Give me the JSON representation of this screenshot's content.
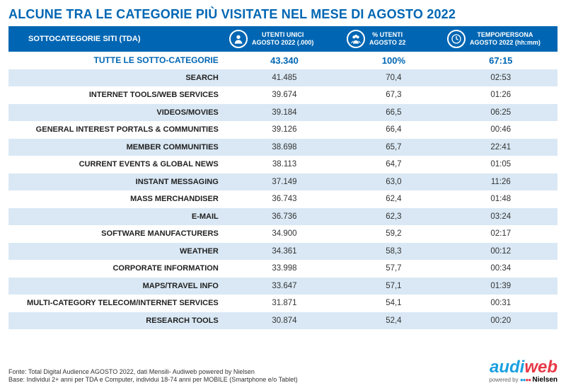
{
  "title": "ALCUNE TRA LE CATEGORIE PIÙ VISITATE NEL MESE DI AGOSTO 2022",
  "colors": {
    "brand_blue": "#0066b3",
    "row_alt": "#d9e8f4",
    "logo_blue": "#1aa0e0",
    "logo_red": "#e63946"
  },
  "header": {
    "category_label": "SOTTOCATEGORIE SITI  (TDA)",
    "users": {
      "line1": "UTENTI UNICI",
      "line2": "AGOSTO 2022 (.000)"
    },
    "percent": {
      "line1": "% UTENTI",
      "line2": "AGOSTO 22"
    },
    "time": {
      "line1": "TEMPO/PERSONA",
      "line2": "AGOSTO 2022 (hh:mm)"
    },
    "icons": {
      "users": "person-icon",
      "percent": "group-icon",
      "time": "clock-icon"
    }
  },
  "total_row": {
    "category": "TUTTE LE SOTTO-CATEGORIE",
    "users": "43.340",
    "percent": "100%",
    "time": "67:15"
  },
  "rows": [
    {
      "category": "SEARCH",
      "users": "41.485",
      "percent": "70,4",
      "time": "02:53"
    },
    {
      "category": "INTERNET TOOLS/WEB SERVICES",
      "users": "39.674",
      "percent": "67,3",
      "time": "01:26"
    },
    {
      "category": "VIDEOS/MOVIES",
      "users": "39.184",
      "percent": "66,5",
      "time": "06:25"
    },
    {
      "category": "GENERAL INTEREST PORTALS & COMMUNITIES",
      "users": "39.126",
      "percent": "66,4",
      "time": "00:46"
    },
    {
      "category": "MEMBER COMMUNITIES",
      "users": "38.698",
      "percent": "65,7",
      "time": "22:41"
    },
    {
      "category": "CURRENT EVENTS & GLOBAL NEWS",
      "users": "38.113",
      "percent": "64,7",
      "time": "01:05"
    },
    {
      "category": "INSTANT MESSAGING",
      "users": "37.149",
      "percent": "63,0",
      "time": "11:26"
    },
    {
      "category": "MASS MERCHANDISER",
      "users": "36.743",
      "percent": "62,4",
      "time": "01:48"
    },
    {
      "category": "E-MAIL",
      "users": "36.736",
      "percent": "62,3",
      "time": "03:24"
    },
    {
      "category": "SOFTWARE MANUFACTURERS",
      "users": "34.900",
      "percent": "59,2",
      "time": "02:17"
    },
    {
      "category": "WEATHER",
      "users": "34.361",
      "percent": "58,3",
      "time": "00:12"
    },
    {
      "category": "CORPORATE INFORMATION",
      "users": "33.998",
      "percent": "57,7",
      "time": "00:34"
    },
    {
      "category": "MAPS/TRAVEL INFO",
      "users": "33.647",
      "percent": "57,1",
      "time": "01:39"
    },
    {
      "category": "MULTI-CATEGORY TELECOM/INTERNET SERVICES",
      "users": "31.871",
      "percent": "54,1",
      "time": "00:31"
    },
    {
      "category": "RESEARCH TOOLS",
      "users": "30.874",
      "percent": "52,4",
      "time": "00:20"
    }
  ],
  "footer": {
    "source_line1": "Fonte: Total Digital Audience AGOSTO 2022, dati Mensili- Audiweb powered by Nielsen",
    "source_line2": "Base:  Individui 2+ anni per TDA e Computer, individui 18-74 anni per MOBILE (Smartphone e/o Tablet)",
    "logo_part1": "audi",
    "logo_part2": "web",
    "powered_by": "powered by",
    "nielsen": "Nielsen"
  }
}
